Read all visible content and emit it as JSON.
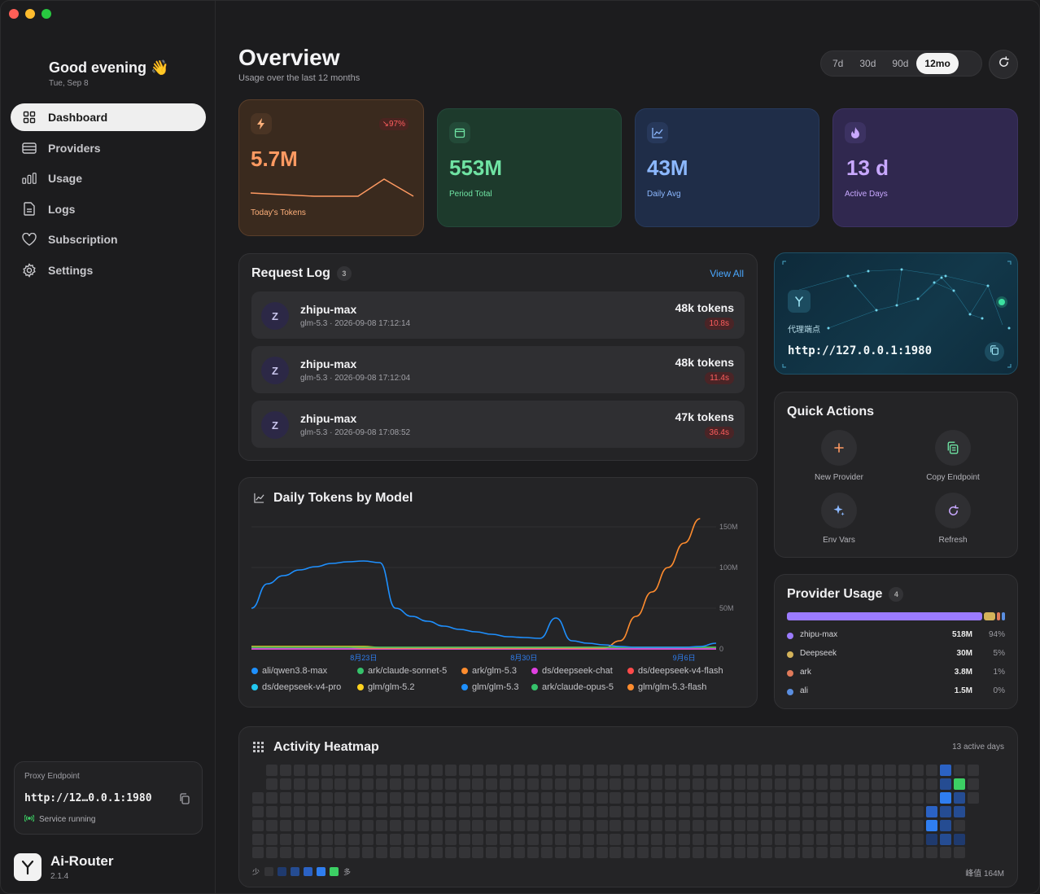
{
  "sidebar": {
    "greeting": "Good evening 👋",
    "date": "Tue, Sep 8",
    "nav": [
      {
        "label": "Dashboard",
        "icon": "grid-icon",
        "active": true
      },
      {
        "label": "Providers",
        "icon": "server-icon",
        "active": false
      },
      {
        "label": "Usage",
        "icon": "bar-chart-icon",
        "active": false
      },
      {
        "label": "Logs",
        "icon": "document-icon",
        "active": false
      },
      {
        "label": "Subscription",
        "icon": "heart-icon",
        "active": false
      },
      {
        "label": "Settings",
        "icon": "gear-icon",
        "active": false
      }
    ],
    "proxy": {
      "label": "Proxy Endpoint",
      "url": "http://12…0.0.1:1980",
      "status": "Service running"
    },
    "brand": {
      "name": "Ai-Router",
      "version": "2.1.4"
    }
  },
  "header": {
    "title": "Overview",
    "subtitle": "Usage over the last 12 months",
    "ranges": [
      "7d",
      "30d",
      "90d",
      "12mo"
    ],
    "active_range": "12mo"
  },
  "stats": [
    {
      "value": "5.7M",
      "label": "Today's Tokens",
      "badge": "↘97%",
      "icon": "lightning-icon",
      "color": "#ff9a62"
    },
    {
      "value": "553M",
      "label": "Period Total",
      "icon": "calendar-icon",
      "color": "#6fe3a3"
    },
    {
      "value": "43M",
      "label": "Daily Avg",
      "icon": "trend-icon",
      "color": "#8cb8ff"
    },
    {
      "value": "13 d",
      "label": "Active Days",
      "icon": "flame-icon",
      "color": "#c8a8ff"
    }
  ],
  "request_log": {
    "title": "Request Log",
    "count": "3",
    "view_all": "View All",
    "rows": [
      {
        "avatar": "Z",
        "model": "zhipu-max",
        "detail": "glm-5.3 · 2026-09-08 17:12:14",
        "tokens": "48k tokens",
        "latency": "10.8s"
      },
      {
        "avatar": "Z",
        "model": "zhipu-max",
        "detail": "glm-5.3 · 2026-09-08 17:12:04",
        "tokens": "48k tokens",
        "latency": "11.4s"
      },
      {
        "avatar": "Z",
        "model": "zhipu-max",
        "detail": "glm-5.3 · 2026-09-08 17:08:52",
        "tokens": "47k tokens",
        "latency": "36.4s"
      }
    ]
  },
  "endpoint_card": {
    "label": "代理端点",
    "url": "http://127.0.0.1:1980"
  },
  "quick_actions": {
    "title": "Quick Actions",
    "items": [
      {
        "label": "New Provider",
        "icon": "plus-icon"
      },
      {
        "label": "Copy Endpoint",
        "icon": "copy-icon"
      },
      {
        "label": "Env Vars",
        "icon": "sparkle-icon"
      },
      {
        "label": "Refresh",
        "icon": "refresh-icon"
      }
    ]
  },
  "provider_usage": {
    "title": "Provider Usage",
    "count": "4",
    "rows": [
      {
        "name": "zhipu-max",
        "value": "518M",
        "pct": "94%",
        "share": 0.94,
        "color": "#9b7bff"
      },
      {
        "name": "Deepseek",
        "value": "30M",
        "pct": "5%",
        "share": 0.05,
        "color": "#d4b35a"
      },
      {
        "name": "ark",
        "value": "3.8M",
        "pct": "1%",
        "share": 0.01,
        "color": "#e07a5a"
      },
      {
        "name": "ali",
        "value": "1.5M",
        "pct": "0%",
        "share": 0.003,
        "color": "#5a8ee0"
      }
    ]
  },
  "chart_data": {
    "type": "line",
    "title": "Daily Tokens by Model",
    "x_ticks": [
      "8月23日",
      "8月30日",
      "9月6日"
    ],
    "y_ticks": [
      "150M",
      "100M",
      "50M",
      "0"
    ],
    "ylim": [
      0,
      160
    ],
    "y_unit": "M",
    "grid": true,
    "legend_position": "bottom",
    "x": [
      0,
      1,
      2,
      3,
      4,
      5,
      6,
      7,
      8,
      9,
      10,
      11,
      12,
      13,
      14,
      15,
      16,
      17,
      18,
      19,
      20,
      21,
      22,
      23,
      24,
      25,
      26,
      27,
      28,
      29
    ],
    "series": [
      {
        "name": "ali/qwen3.8-max",
        "color": "#1e90ff",
        "values": [
          50,
          80,
          90,
          97,
          101,
          105,
          107,
          108,
          106,
          50,
          40,
          34,
          28,
          24,
          21,
          18,
          15,
          14,
          13,
          38,
          10,
          7,
          5,
          3,
          2,
          2,
          2,
          2,
          3,
          7
        ]
      },
      {
        "name": "ark/claude-sonnet-5",
        "color": "#36c26b",
        "values": [
          2,
          2,
          2,
          2,
          2,
          2,
          2,
          2,
          2,
          2,
          2,
          2,
          2,
          2,
          2,
          2,
          2,
          2,
          2,
          2,
          2,
          2,
          2,
          2,
          2,
          2,
          2,
          2,
          2,
          2
        ]
      },
      {
        "name": "ark/glm-5.3",
        "color": "#ff8c2e",
        "values": [
          2,
          2,
          2,
          2,
          2,
          2,
          2,
          1,
          1,
          1,
          1,
          1,
          1,
          1,
          1,
          1,
          1,
          1,
          1,
          1,
          1,
          1,
          1,
          10,
          40,
          70,
          100,
          130,
          160,
          null
        ]
      },
      {
        "name": "ds/deepseek-chat",
        "color": "#e040e0",
        "values": [
          0,
          0,
          0,
          0,
          0,
          0,
          0,
          0,
          0,
          0,
          0,
          0,
          0,
          0,
          0,
          0,
          0,
          0,
          0,
          0,
          0,
          0,
          0,
          0,
          0,
          0,
          0,
          0,
          0,
          0
        ]
      },
      {
        "name": "ds/deepseek-v4-flash",
        "color": "#ff4a4a",
        "values": [
          0,
          0,
          0,
          0,
          0,
          0,
          0,
          0,
          0,
          0,
          0,
          0,
          0,
          0,
          0,
          0,
          0,
          0,
          0,
          0,
          0,
          0,
          0,
          0,
          0,
          0,
          0,
          0,
          0,
          0
        ]
      },
      {
        "name": "ds/deepseek-v4-pro",
        "color": "#22c8f0",
        "values": [
          0,
          0,
          0,
          0,
          0,
          0,
          0,
          0,
          0,
          0,
          0,
          0,
          0,
          0,
          0,
          0,
          0,
          0,
          0,
          0,
          0,
          0,
          0,
          0,
          0,
          0,
          0,
          0,
          0,
          0
        ]
      },
      {
        "name": "glm/glm-5.2",
        "color": "#ffd21e",
        "values": [
          3,
          3,
          3,
          3,
          3,
          3,
          3,
          3,
          2,
          2,
          2,
          2,
          2,
          2,
          2,
          2,
          2,
          2,
          2,
          2,
          2,
          2,
          2,
          2,
          2,
          2,
          2,
          2,
          2,
          2
        ]
      },
      {
        "name": "glm/glm-5.3",
        "color": "#1e90ff",
        "values": [
          0,
          0,
          0,
          0,
          0,
          0,
          0,
          0,
          0,
          0,
          0,
          0,
          0,
          0,
          0,
          0,
          0,
          0,
          0,
          0,
          0,
          0,
          0,
          0,
          0,
          0,
          0,
          0,
          0,
          0
        ]
      },
      {
        "name": "ark/claude-opus-5",
        "color": "#36c26b",
        "values": [
          0,
          0,
          0,
          0,
          0,
          0,
          0,
          0,
          0,
          0,
          0,
          0,
          0,
          0,
          0,
          0,
          0,
          0,
          0,
          0,
          0,
          0,
          0,
          0,
          0,
          0,
          0,
          0,
          0,
          0
        ]
      },
      {
        "name": "glm/glm-5.3-flash",
        "color": "#ff8c2e",
        "values": [
          0,
          0,
          0,
          0,
          0,
          0,
          0,
          0,
          0,
          0,
          0,
          0,
          0,
          0,
          0,
          0,
          0,
          0,
          0,
          0,
          0,
          0,
          0,
          0,
          0,
          0,
          0,
          0,
          0,
          0
        ]
      }
    ]
  },
  "heatmap": {
    "title": "Activity Heatmap",
    "active_days": "13 active days",
    "legend_low": "少",
    "legend_high": "多",
    "peak": "峰值 164M",
    "weeks": 53,
    "active_cells": [
      {
        "week": 50,
        "day": 0,
        "level": 3
      },
      {
        "week": 50,
        "day": 1,
        "level": 2
      },
      {
        "week": 50,
        "day": 2,
        "level": 4
      },
      {
        "week": 50,
        "day": 3,
        "level": 2
      },
      {
        "week": 50,
        "day": 4,
        "level": 2
      },
      {
        "week": 50,
        "day": 5,
        "level": 2
      },
      {
        "week": 51,
        "day": 1,
        "level": 5
      },
      {
        "week": 51,
        "day": 2,
        "level": 2
      },
      {
        "week": 51,
        "day": 3,
        "level": 2
      },
      {
        "week": 51,
        "day": 5,
        "level": 1
      },
      {
        "week": 49,
        "day": 3,
        "level": 3
      },
      {
        "week": 49,
        "day": 4,
        "level": 4
      },
      {
        "week": 49,
        "day": 5,
        "level": 1
      }
    ],
    "level_colors": [
      "#343437",
      "#1f3a6e",
      "#254c92",
      "#2b62c4",
      "#2f7ef0",
      "#3ccf64"
    ]
  }
}
